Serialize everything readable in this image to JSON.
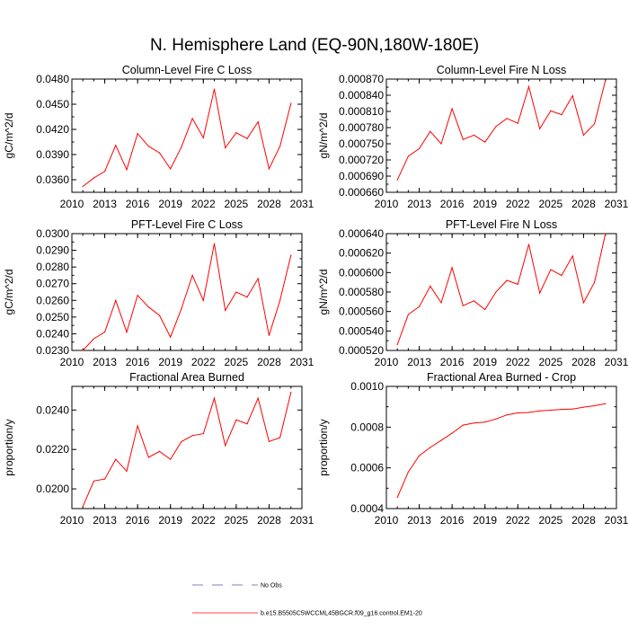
{
  "title": "N. Hemisphere Land (EQ-90N,180W-180E)",
  "colors": {
    "series": "#ff0000",
    "obs": "#6a4fb3",
    "axis": "#000000"
  },
  "legend": {
    "entries": [
      {
        "label": "No Obs",
        "style": "dashed",
        "color": "#6a4fb3"
      },
      {
        "label": "b.e15.B5505C5WCCML45BGCR.f09_g16.control.EM1-20",
        "style": "solid",
        "color": "#ff0000"
      }
    ]
  },
  "chart_data": [
    {
      "type": "line",
      "title": "Column-Level Fire C Loss",
      "ylabel": "gC/m^2/d",
      "xlim": [
        2010,
        2031
      ],
      "xticks": [
        2010,
        2013,
        2016,
        2019,
        2022,
        2025,
        2028,
        2031
      ],
      "xtick_labels": [
        "2010",
        "2013",
        "2016",
        "2019",
        "2022",
        "2025",
        "2028",
        "2031"
      ],
      "ylim": [
        0.0345,
        0.048
      ],
      "yticks": [
        0.036,
        0.039,
        0.042,
        0.045,
        0.048
      ],
      "ytick_labels": [
        "0.0360",
        "0.0390",
        "0.0420",
        "0.0450",
        "0.0480"
      ],
      "series": [
        {
          "name": "b.e15.B5505C5WCCML45BGCR.f09_g16.control.EM1-20",
          "x": [
            2011,
            2012,
            2013,
            2014,
            2015,
            2016,
            2017,
            2018,
            2019,
            2020,
            2021,
            2022,
            2023,
            2024,
            2025,
            2026,
            2027,
            2028,
            2029,
            2030
          ],
          "values": [
            0.0352,
            0.0362,
            0.037,
            0.0401,
            0.0372,
            0.0415,
            0.04,
            0.0392,
            0.0373,
            0.0399,
            0.0433,
            0.041,
            0.0468,
            0.0398,
            0.0416,
            0.0409,
            0.0429,
            0.0373,
            0.04,
            0.0451
          ]
        }
      ]
    },
    {
      "type": "line",
      "title": "Column-Level Fire N Loss",
      "ylabel": "gN/m^2/d",
      "xlim": [
        2010,
        2031
      ],
      "xticks": [
        2010,
        2013,
        2016,
        2019,
        2022,
        2025,
        2028,
        2031
      ],
      "xtick_labels": [
        "2010",
        "2013",
        "2016",
        "2019",
        "2022",
        "2025",
        "2028",
        "2031"
      ],
      "ylim": [
        0.00066,
        0.00087
      ],
      "yticks": [
        0.00066,
        0.00069,
        0.00072,
        0.00075,
        0.00078,
        0.00081,
        0.00084,
        0.00087
      ],
      "ytick_labels": [
        "0.000660",
        "0.000690",
        "0.000720",
        "0.000750",
        "0.000780",
        "0.000810",
        "0.000840",
        "0.000870"
      ],
      "series": [
        {
          "name": "b.e15.B5505C5WCCML45BGCR.f09_g16.control.EM1-20",
          "x": [
            2011,
            2012,
            2013,
            2014,
            2015,
            2016,
            2017,
            2018,
            2019,
            2020,
            2021,
            2022,
            2023,
            2024,
            2025,
            2026,
            2027,
            2028,
            2029,
            2030
          ],
          "values": [
            0.000683,
            0.000727,
            0.000741,
            0.000773,
            0.00075,
            0.000815,
            0.000758,
            0.000766,
            0.000753,
            0.000782,
            0.000797,
            0.000788,
            0.000856,
            0.000778,
            0.000811,
            0.000804,
            0.000839,
            0.000766,
            0.000787,
            0.000868
          ]
        }
      ]
    },
    {
      "type": "line",
      "title": "PFT-Level Fire C Loss",
      "ylabel": "gC/m^2/d",
      "xlim": [
        2010,
        2031
      ],
      "xticks": [
        2010,
        2013,
        2016,
        2019,
        2022,
        2025,
        2028,
        2031
      ],
      "xtick_labels": [
        "2010",
        "2013",
        "2016",
        "2019",
        "2022",
        "2025",
        "2028",
        "2031"
      ],
      "ylim": [
        0.023,
        0.03
      ],
      "yticks": [
        0.023,
        0.024,
        0.025,
        0.026,
        0.027,
        0.028,
        0.029,
        0.03
      ],
      "ytick_labels": [
        "0.0230",
        "0.0240",
        "0.0250",
        "0.0260",
        "0.0270",
        "0.0280",
        "0.0290",
        "0.0300"
      ],
      "series": [
        {
          "name": "b.e15.B5505C5WCCML45BGCR.f09_g16.control.EM1-20",
          "x": [
            2011,
            2012,
            2013,
            2014,
            2015,
            2016,
            2017,
            2018,
            2019,
            2020,
            2021,
            2022,
            2023,
            2024,
            2025,
            2026,
            2027,
            2028,
            2029,
            2030
          ],
          "values": [
            0.023,
            0.0237,
            0.0241,
            0.026,
            0.0241,
            0.0263,
            0.0256,
            0.0251,
            0.0238,
            0.0255,
            0.0275,
            0.026,
            0.0294,
            0.0254,
            0.0265,
            0.0262,
            0.0273,
            0.0239,
            0.026,
            0.0287
          ]
        }
      ]
    },
    {
      "type": "line",
      "title": "PFT-Level Fire N Loss",
      "ylabel": "gN/m^2/d",
      "xlim": [
        2010,
        2031
      ],
      "xticks": [
        2010,
        2013,
        2016,
        2019,
        2022,
        2025,
        2028,
        2031
      ],
      "xtick_labels": [
        "2010",
        "2013",
        "2016",
        "2019",
        "2022",
        "2025",
        "2028",
        "2031"
      ],
      "ylim": [
        0.00052,
        0.00064
      ],
      "yticks": [
        0.00052,
        0.00054,
        0.00056,
        0.00058,
        0.0006,
        0.00062,
        0.00064
      ],
      "ytick_labels": [
        "0.000520",
        "0.000540",
        "0.000560",
        "0.000580",
        "0.000600",
        "0.000620",
        "0.000640"
      ],
      "series": [
        {
          "name": "b.e15.B5505C5WCCML45BGCR.f09_g16.control.EM1-20",
          "x": [
            2011,
            2012,
            2013,
            2014,
            2015,
            2016,
            2017,
            2018,
            2019,
            2020,
            2021,
            2022,
            2023,
            2024,
            2025,
            2026,
            2027,
            2028,
            2029,
            2030
          ],
          "values": [
            0.000526,
            0.000557,
            0.000565,
            0.000586,
            0.000569,
            0.000605,
            0.000566,
            0.000571,
            0.000562,
            0.00058,
            0.000592,
            0.000588,
            0.000629,
            0.000579,
            0.000603,
            0.000597,
            0.000617,
            0.000569,
            0.00059,
            0.00064
          ]
        }
      ]
    },
    {
      "type": "line",
      "title": "Fractional Area Burned",
      "ylabel": "proportion/y",
      "xlim": [
        2010,
        2031
      ],
      "xticks": [
        2010,
        2013,
        2016,
        2019,
        2022,
        2025,
        2028,
        2031
      ],
      "xtick_labels": [
        "2010",
        "2013",
        "2016",
        "2019",
        "2022",
        "2025",
        "2028",
        "2031"
      ],
      "ylim": [
        0.019,
        0.0252
      ],
      "yticks": [
        0.02,
        0.022,
        0.024
      ],
      "ytick_labels": [
        "0.0200",
        "0.0220",
        "0.0240"
      ],
      "series": [
        {
          "name": "b.e15.B5505C5WCCML45BGCR.f09_g16.control.EM1-20",
          "x": [
            2011,
            2012,
            2013,
            2014,
            2015,
            2016,
            2017,
            2018,
            2019,
            2020,
            2021,
            2022,
            2023,
            2024,
            2025,
            2026,
            2027,
            2028,
            2029,
            2030
          ],
          "values": [
            0.0191,
            0.0204,
            0.0205,
            0.0215,
            0.0209,
            0.0232,
            0.0216,
            0.0219,
            0.0215,
            0.0224,
            0.0227,
            0.0228,
            0.0246,
            0.0222,
            0.0235,
            0.0233,
            0.0246,
            0.0224,
            0.0226,
            0.0249
          ]
        }
      ]
    },
    {
      "type": "line",
      "title": "Fractional Area Burned - Crop",
      "ylabel": "proportion/y",
      "xlim": [
        2010,
        2031
      ],
      "xticks": [
        2010,
        2013,
        2016,
        2019,
        2022,
        2025,
        2028,
        2031
      ],
      "xtick_labels": [
        "2010",
        "2013",
        "2016",
        "2019",
        "2022",
        "2025",
        "2028",
        "2031"
      ],
      "ylim": [
        0.0004,
        0.001
      ],
      "yticks": [
        0.0004,
        0.0006,
        0.0008,
        0.001
      ],
      "ytick_labels": [
        "0.0004",
        "0.0006",
        "0.0008",
        "0.0010"
      ],
      "series": [
        {
          "name": "b.e15.B5505C5WCCML45BGCR.f09_g16.control.EM1-20",
          "x": [
            2011,
            2012,
            2013,
            2014,
            2015,
            2016,
            2017,
            2018,
            2019,
            2020,
            2021,
            2022,
            2023,
            2024,
            2025,
            2026,
            2027,
            2028,
            2029,
            2030
          ],
          "values": [
            0.000455,
            0.00058,
            0.00066,
            0.0007,
            0.000735,
            0.00077,
            0.00081,
            0.00082,
            0.000825,
            0.00084,
            0.00086,
            0.00087,
            0.000872,
            0.00088,
            0.000883,
            0.000887,
            0.000889,
            0.000898,
            0.000905,
            0.000915
          ]
        }
      ]
    }
  ]
}
